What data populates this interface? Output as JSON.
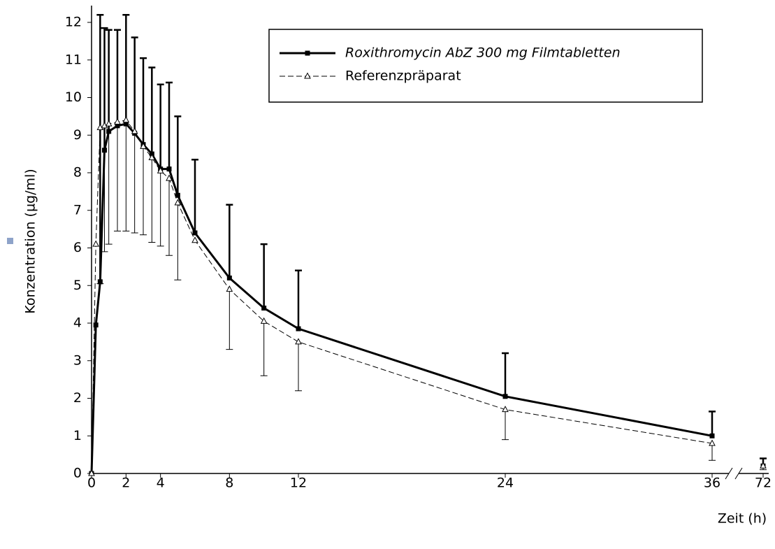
{
  "chart_data": {
    "type": "line",
    "x": [
      0,
      0.25,
      0.5,
      0.75,
      1,
      1.5,
      2,
      2.5,
      3,
      3.5,
      4,
      4.5,
      5,
      6,
      8,
      10,
      12,
      24,
      36,
      72
    ],
    "series": [
      {
        "name": "Roxithromycin AbZ 300 mg Filmtabletten",
        "color": "#000000",
        "marker": "square",
        "error_direction": "up",
        "values": [
          0,
          3.95,
          5.1,
          8.6,
          9.1,
          9.25,
          9.3,
          9.05,
          8.75,
          8.5,
          8.1,
          8.1,
          7.4,
          6.4,
          5.2,
          4.4,
          3.85,
          2.05,
          1.0,
          0.2
        ],
        "errors": [
          null,
          null,
          7.1,
          3.25,
          2.7,
          2.55,
          2.9,
          2.55,
          2.3,
          2.3,
          2.25,
          2.3,
          2.1,
          1.95,
          1.95,
          1.7,
          1.55,
          1.15,
          0.65,
          0.2
        ]
      },
      {
        "name": "Referenzpräparat",
        "color": "#000000",
        "marker": "triangle",
        "error_direction": "down",
        "values": [
          0,
          6.1,
          9.2,
          9.25,
          9.3,
          9.35,
          9.4,
          9.1,
          8.7,
          8.4,
          8.05,
          7.85,
          7.2,
          6.2,
          4.9,
          4.05,
          3.5,
          1.7,
          0.8,
          0.2
        ],
        "errors": [
          null,
          null,
          4.15,
          3.35,
          3.2,
          2.9,
          2.95,
          2.7,
          2.35,
          2.25,
          2.0,
          2.05,
          2.05,
          null,
          1.6,
          1.45,
          1.3,
          0.8,
          0.45,
          0.1
        ]
      }
    ],
    "xlabel": "Zeit (h)",
    "ylabel": "Konzentration (µg/ml)",
    "xlim": [
      0,
      72
    ],
    "xbreak": [
      37,
      70
    ],
    "ylim": [
      0,
      12
    ],
    "xticks": [
      0,
      2,
      4,
      8,
      12,
      24,
      36,
      72
    ],
    "yticks": [
      0,
      1,
      2,
      3,
      4,
      5,
      6,
      7,
      8,
      9,
      10,
      11,
      12
    ],
    "legend": "upper right"
  }
}
